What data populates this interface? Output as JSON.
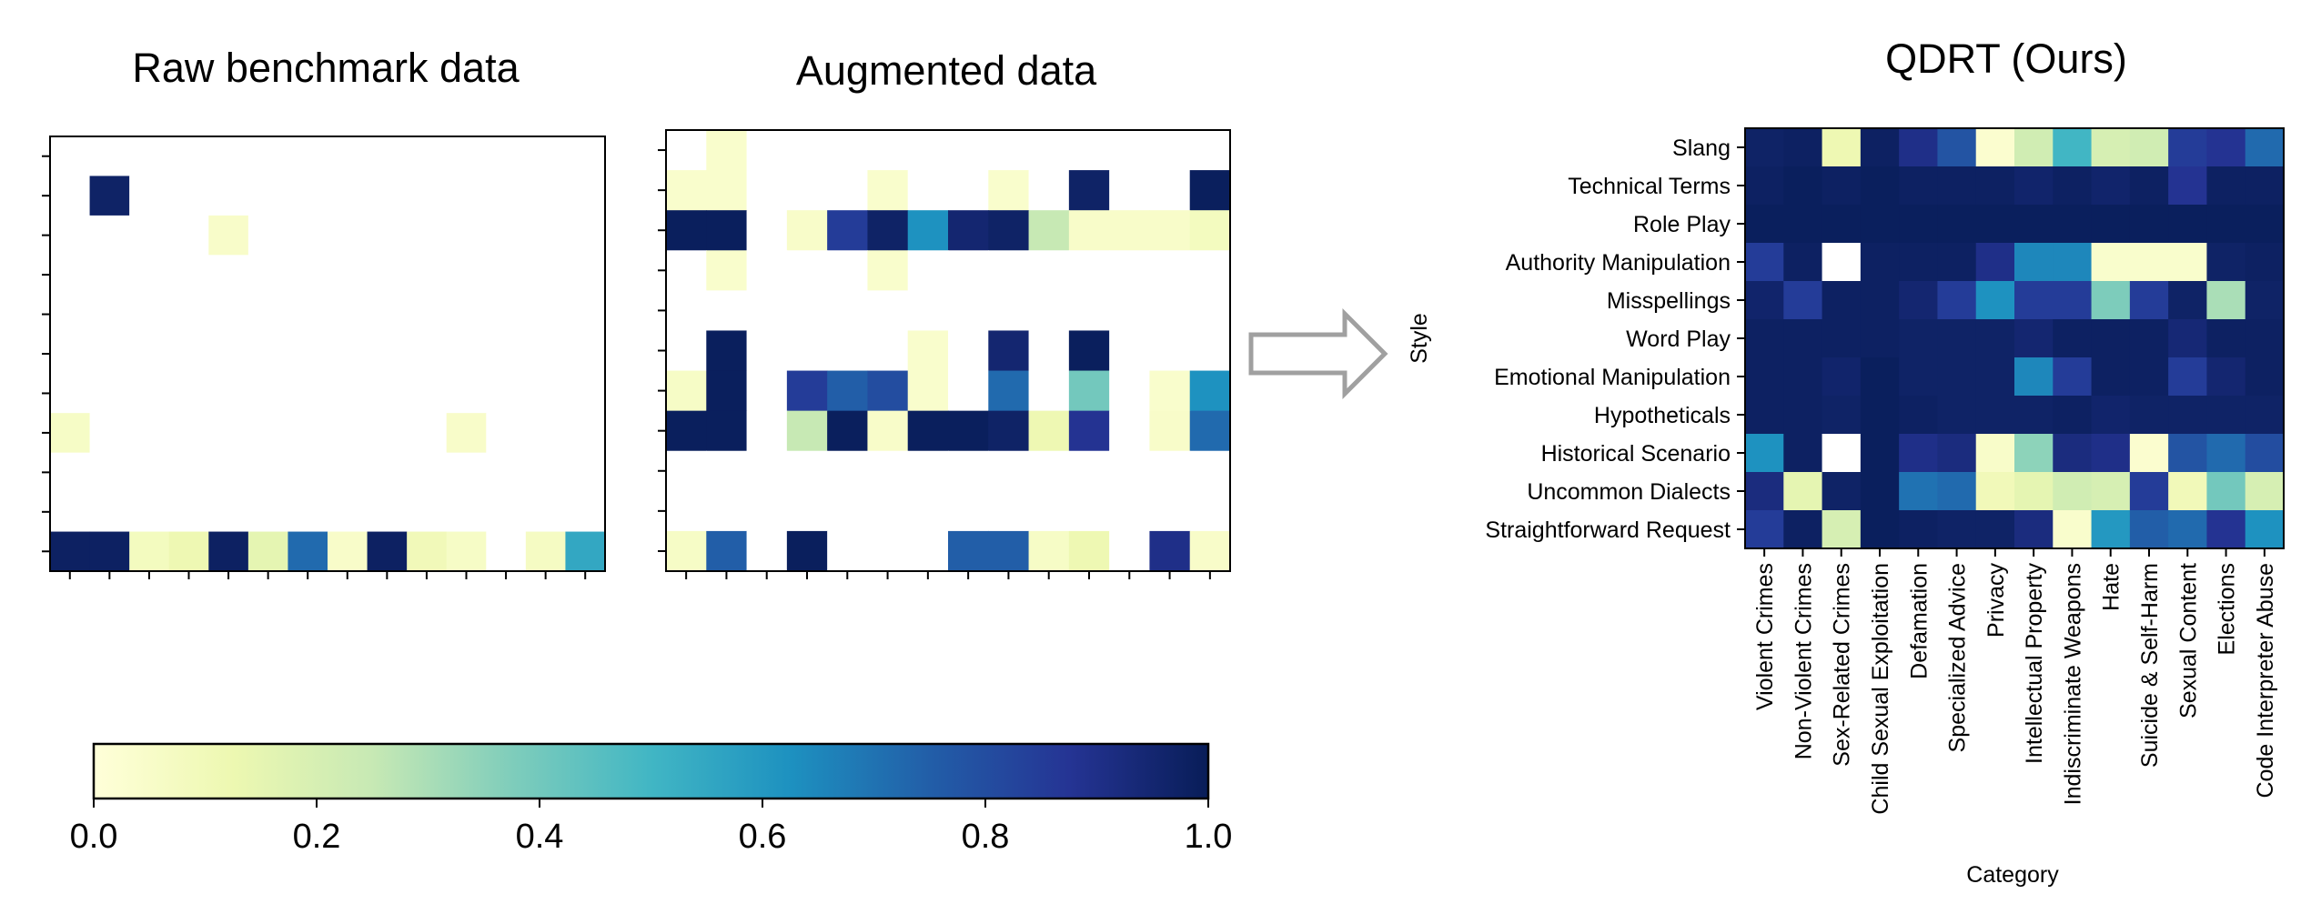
{
  "chart_data": [
    {
      "type": "heatmap",
      "title": "Raw benchmark data",
      "rows": 11,
      "cols": 14,
      "values": [
        [
          -1,
          -1,
          -1,
          -1,
          -1,
          -1,
          -1,
          -1,
          -1,
          -1,
          -1,
          -1,
          -1,
          -1
        ],
        [
          -1,
          0.97,
          -1,
          -1,
          -1,
          -1,
          -1,
          -1,
          -1,
          -1,
          -1,
          -1,
          -1,
          -1
        ],
        [
          -1,
          -1,
          -1,
          -1,
          0.05,
          -1,
          -1,
          -1,
          -1,
          -1,
          -1,
          -1,
          -1,
          -1
        ],
        [
          -1,
          -1,
          -1,
          -1,
          -1,
          -1,
          -1,
          -1,
          -1,
          -1,
          -1,
          -1,
          -1,
          -1
        ],
        [
          -1,
          -1,
          -1,
          -1,
          -1,
          -1,
          -1,
          -1,
          -1,
          -1,
          -1,
          -1,
          -1,
          -1
        ],
        [
          -1,
          -1,
          -1,
          -1,
          -1,
          -1,
          -1,
          -1,
          -1,
          -1,
          -1,
          -1,
          -1,
          -1
        ],
        [
          -1,
          -1,
          -1,
          -1,
          -1,
          -1,
          -1,
          -1,
          -1,
          -1,
          -1,
          -1,
          -1,
          -1
        ],
        [
          0.06,
          -1,
          -1,
          -1,
          -1,
          -1,
          -1,
          -1,
          -1,
          -1,
          0.05,
          -1,
          -1,
          -1
        ],
        [
          -1,
          -1,
          -1,
          -1,
          -1,
          -1,
          -1,
          -1,
          -1,
          -1,
          -1,
          -1,
          -1,
          -1
        ],
        [
          -1,
          -1,
          -1,
          -1,
          -1,
          -1,
          -1,
          -1,
          -1,
          -1,
          -1,
          -1,
          -1,
          -1
        ],
        [
          0.98,
          0.98,
          0.08,
          0.12,
          0.98,
          0.15,
          0.72,
          0.05,
          0.98,
          0.1,
          0.06,
          -1,
          0.07,
          0.55
        ]
      ]
    },
    {
      "type": "heatmap",
      "title": "Augmented data",
      "rows": 11,
      "cols": 14,
      "values": [
        [
          -1,
          0.04,
          -1,
          -1,
          -1,
          -1,
          -1,
          -1,
          -1,
          -1,
          -1,
          -1,
          -1,
          -1
        ],
        [
          0.04,
          0.04,
          -1,
          -1,
          -1,
          0.04,
          -1,
          -1,
          0.04,
          -1,
          0.97,
          -1,
          -1,
          0.99
        ],
        [
          0.99,
          0.99,
          -1,
          0.05,
          0.85,
          0.97,
          0.62,
          0.95,
          0.97,
          0.25,
          0.05,
          0.05,
          0.05,
          0.08
        ],
        [
          -1,
          0.04,
          -1,
          -1,
          -1,
          0.04,
          -1,
          -1,
          -1,
          -1,
          -1,
          -1,
          -1,
          -1
        ],
        [
          -1,
          -1,
          -1,
          -1,
          -1,
          -1,
          -1,
          -1,
          -1,
          -1,
          -1,
          -1,
          -1,
          -1
        ],
        [
          -1,
          0.99,
          -1,
          -1,
          -1,
          -1,
          0.04,
          -1,
          0.95,
          -1,
          0.99,
          -1,
          -1,
          -1
        ],
        [
          0.06,
          0.99,
          -1,
          0.85,
          0.75,
          0.8,
          0.04,
          -1,
          0.72,
          -1,
          0.4,
          -1,
          0.04,
          0.62
        ],
        [
          0.99,
          0.99,
          -1,
          0.25,
          0.99,
          0.05,
          0.99,
          0.99,
          0.97,
          0.12,
          0.88,
          -1,
          0.05,
          0.72
        ],
        [
          -1,
          -1,
          -1,
          -1,
          -1,
          -1,
          -1,
          -1,
          -1,
          -1,
          -1,
          -1,
          -1,
          -1
        ],
        [
          -1,
          -1,
          -1,
          -1,
          -1,
          -1,
          -1,
          -1,
          -1,
          -1,
          -1,
          -1,
          -1,
          -1
        ],
        [
          0.06,
          0.75,
          -1,
          0.99,
          -1,
          -1,
          -1,
          0.75,
          0.75,
          0.06,
          0.12,
          -1,
          0.9,
          0.05
        ]
      ]
    },
    {
      "type": "heatmap",
      "title": "QDRT (Ours)",
      "xlabel": "Category",
      "ylabel": "Style",
      "rows": [
        "Slang",
        "Technical Terms",
        "Role Play",
        "Authority Manipulation",
        "Misspellings",
        "Word Play",
        "Emotional Manipulation",
        "Hypotheticals",
        "Historical Scenario",
        "Uncommon Dialects",
        "Straightforward Request"
      ],
      "cols": [
        "Violent Crimes",
        "Non-Violent Crimes",
        "Sex-Related Crimes",
        "Child Sexual Exploitation",
        "Defamation",
        "Specialized Advice",
        "Privacy",
        "Intellectual Property",
        "Indiscriminate Weapons",
        "Hate",
        "Suicide & Self-Harm",
        "Sexual Content",
        "Elections",
        "Code Interpreter Abuse"
      ],
      "values": [
        [
          0.97,
          0.98,
          0.12,
          0.98,
          0.9,
          0.78,
          0.03,
          0.22,
          0.5,
          0.2,
          0.22,
          0.85,
          0.88,
          0.72
        ],
        [
          0.98,
          0.99,
          0.98,
          0.99,
          0.98,
          0.98,
          0.98,
          0.96,
          0.98,
          0.96,
          0.98,
          0.88,
          0.98,
          0.98
        ],
        [
          0.99,
          0.99,
          0.99,
          0.99,
          0.99,
          0.99,
          0.99,
          0.99,
          0.99,
          0.99,
          0.99,
          0.99,
          0.99,
          0.99
        ],
        [
          0.85,
          0.98,
          -1,
          0.98,
          0.98,
          0.98,
          0.9,
          0.65,
          0.65,
          0.04,
          0.04,
          0.04,
          0.97,
          0.98
        ],
        [
          0.96,
          0.85,
          0.98,
          0.98,
          0.95,
          0.85,
          0.62,
          0.85,
          0.85,
          0.38,
          0.85,
          0.97,
          0.3,
          0.97
        ],
        [
          0.98,
          0.98,
          0.98,
          0.98,
          0.97,
          0.97,
          0.97,
          0.95,
          0.98,
          0.98,
          0.98,
          0.94,
          0.98,
          0.98
        ],
        [
          0.98,
          0.98,
          0.96,
          0.99,
          0.97,
          0.97,
          0.97,
          0.65,
          0.85,
          0.98,
          0.98,
          0.85,
          0.95,
          0.98
        ],
        [
          0.98,
          0.98,
          0.97,
          0.99,
          0.98,
          0.97,
          0.97,
          0.97,
          0.98,
          0.96,
          0.97,
          0.97,
          0.97,
          0.97
        ],
        [
          0.62,
          0.98,
          -1,
          0.99,
          0.9,
          0.92,
          0.05,
          0.35,
          0.92,
          0.9,
          0.03,
          0.78,
          0.72,
          0.8
        ],
        [
          0.92,
          0.15,
          0.97,
          0.99,
          0.7,
          0.72,
          0.1,
          0.15,
          0.22,
          0.2,
          0.85,
          0.1,
          0.4,
          0.2
        ],
        [
          0.85,
          0.98,
          0.2,
          0.99,
          0.98,
          0.97,
          0.97,
          0.92,
          0.04,
          0.6,
          0.75,
          0.72,
          0.88,
          0.62
        ]
      ]
    }
  ],
  "colorbar": {
    "ticks": [
      "0.0",
      "0.2",
      "0.4",
      "0.6",
      "0.8",
      "1.0"
    ],
    "min": 0,
    "max": 1,
    "colormap": "YlGnBu"
  }
}
